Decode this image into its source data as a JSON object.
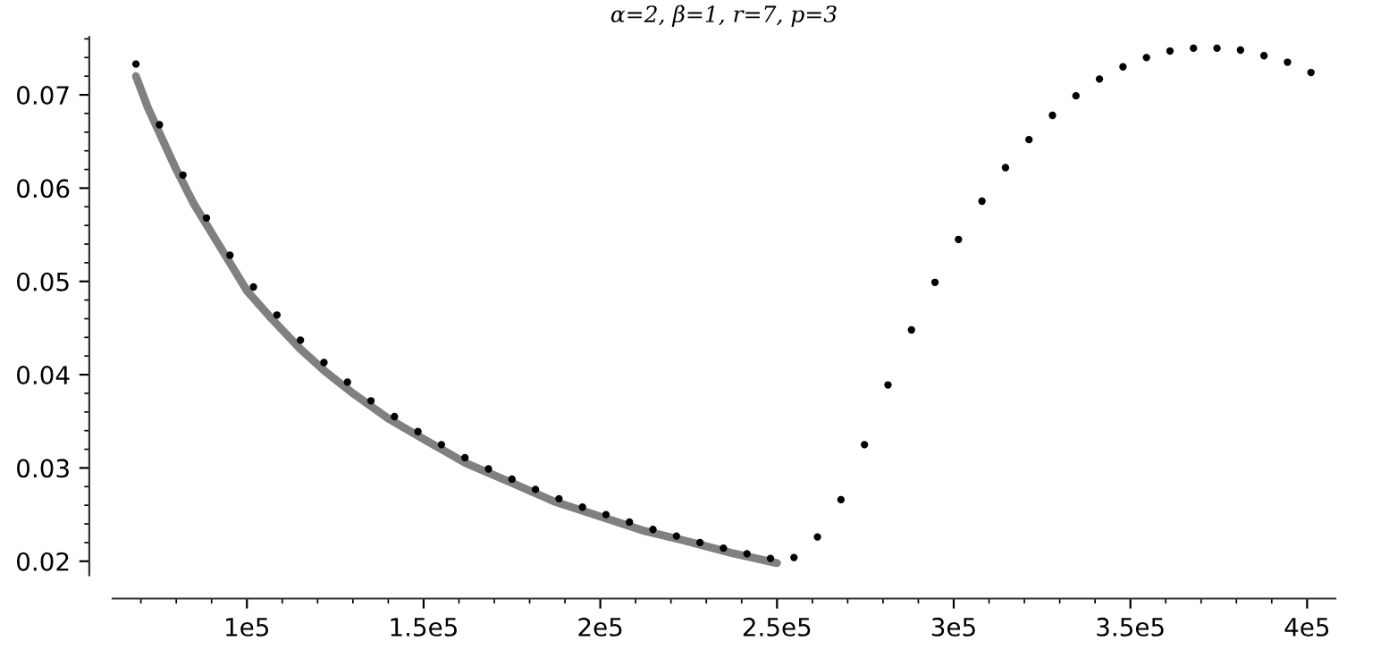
{
  "chart_data": {
    "type": "scatter",
    "title": "α=2, β=1, r=7, p=3",
    "series": [
      {
        "color": "#000000",
        "marker": "circle",
        "x": [
          68600,
          75250,
          81900,
          88550,
          95200,
          101850,
          108500,
          115150,
          121800,
          128450,
          135100,
          141750,
          148400,
          155050,
          161700,
          168350,
          175000,
          181650,
          188300,
          194950,
          201600,
          208250,
          214900,
          221550,
          228200,
          234850,
          241500,
          248150,
          254800,
          261450,
          268100,
          274750,
          281400,
          288050,
          294700,
          301350,
          308000,
          314650,
          321300,
          327950,
          334600,
          341250,
          347900,
          354550,
          361200,
          367850,
          374500,
          381150,
          387800,
          394450,
          401100
        ],
        "values": [
          0.0733,
          0.0668,
          0.0614,
          0.0568,
          0.0528,
          0.0494,
          0.0464,
          0.0437,
          0.0413,
          0.0392,
          0.0372,
          0.0355,
          0.0339,
          0.0325,
          0.0311,
          0.0299,
          0.0288,
          0.0277,
          0.0267,
          0.0258,
          0.025,
          0.0242,
          0.0234,
          0.0227,
          0.022,
          0.0214,
          0.0208,
          0.0203,
          0.0204,
          0.0226,
          0.0266,
          0.0325,
          0.0389,
          0.0448,
          0.0499,
          0.0545,
          0.0586,
          0.0622,
          0.0652,
          0.0678,
          0.0699,
          0.0717,
          0.073,
          0.074,
          0.0747,
          0.075,
          0.075,
          0.0748,
          0.0742,
          0.0735,
          0.0724
        ]
      },
      {
        "type": "line",
        "color": "#808080",
        "marker": "none",
        "x": [
          68600,
          72000,
          80000,
          85000,
          90000,
          100000,
          107000,
          115000,
          122000,
          130000,
          140000,
          150000,
          162000,
          175000,
          187000,
          200000,
          212000,
          225000,
          237000,
          250000
        ],
        "values": [
          0.072,
          0.0686,
          0.062,
          0.0583,
          0.0552,
          0.049,
          0.046,
          0.0428,
          0.0404,
          0.038,
          0.0353,
          0.0331,
          0.0305,
          0.0284,
          0.0264,
          0.0248,
          0.0233,
          0.0221,
          0.0209,
          0.0198
        ]
      }
    ],
    "xlim": [
      62000,
      408000
    ],
    "ylim": [
      0.0185,
      0.0762
    ],
    "xticks": [
      {
        "value": 100000,
        "label": "1e5"
      },
      {
        "value": 150000,
        "label": "1.5e5"
      },
      {
        "value": 200000,
        "label": "2e5"
      },
      {
        "value": 250000,
        "label": "2.5e5"
      },
      {
        "value": 300000,
        "label": "3e5"
      },
      {
        "value": 350000,
        "label": "3.5e5"
      },
      {
        "value": 400000,
        "label": "4e5"
      }
    ],
    "yticks": [
      0.02,
      0.03,
      0.04,
      0.05,
      0.06,
      0.07
    ],
    "grid": false,
    "legend": false
  }
}
